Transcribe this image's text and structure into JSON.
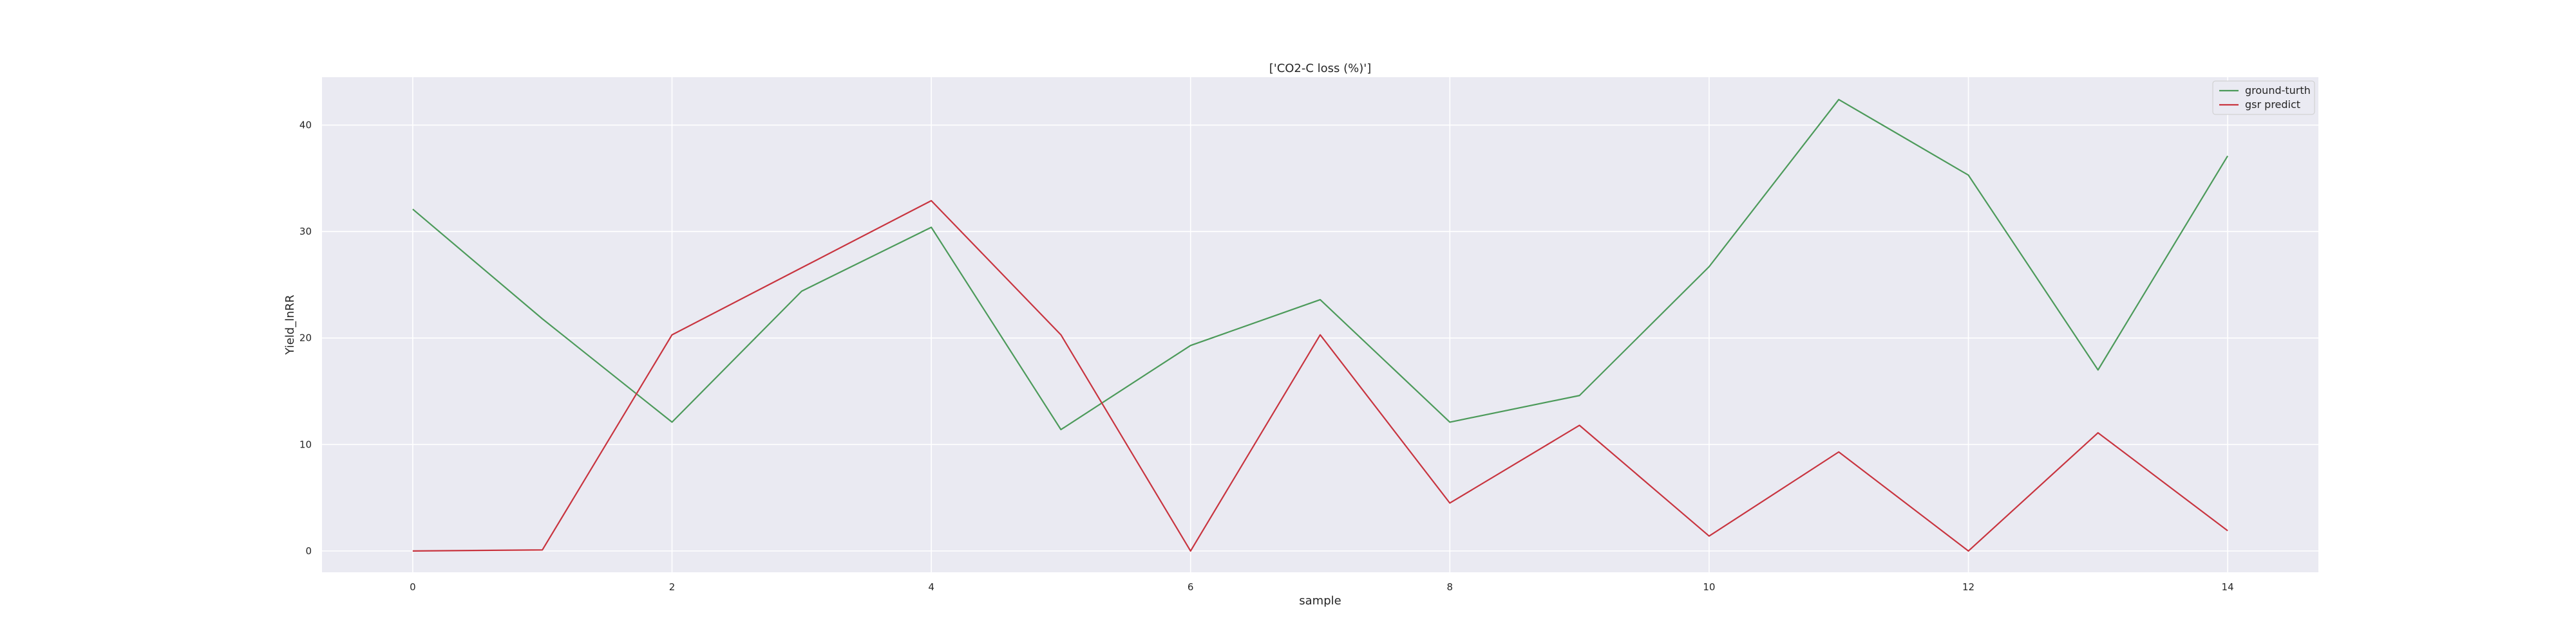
{
  "chart_data": {
    "type": "line",
    "title": "['CO2-C loss (%)']",
    "xlabel": "sample",
    "ylabel": "Yield_lnRR",
    "x": [
      0,
      1,
      2,
      3,
      4,
      5,
      6,
      7,
      8,
      9,
      10,
      11,
      12,
      13,
      14
    ],
    "xlim": [
      -0.7,
      14.7
    ],
    "ylim": [
      -2,
      44.5
    ],
    "xticks": [
      0,
      2,
      4,
      6,
      8,
      10,
      12,
      14
    ],
    "yticks": [
      0,
      10,
      20,
      30,
      40
    ],
    "grid": true,
    "legend_position": "top-right",
    "series": [
      {
        "name": "ground-turth",
        "color": "#4c9a5a",
        "values": [
          32.1,
          21.8,
          12.1,
          24.4,
          30.4,
          11.4,
          19.3,
          23.6,
          12.1,
          14.6,
          26.7,
          42.4,
          35.3,
          17.0,
          37.1
        ]
      },
      {
        "name": "gsr predict",
        "color": "#c8343f",
        "values": [
          0.0,
          0.1,
          20.3,
          26.6,
          32.9,
          20.3,
          0.0,
          20.3,
          4.5,
          11.8,
          1.4,
          9.3,
          0.0,
          11.1,
          1.9
        ]
      }
    ]
  }
}
